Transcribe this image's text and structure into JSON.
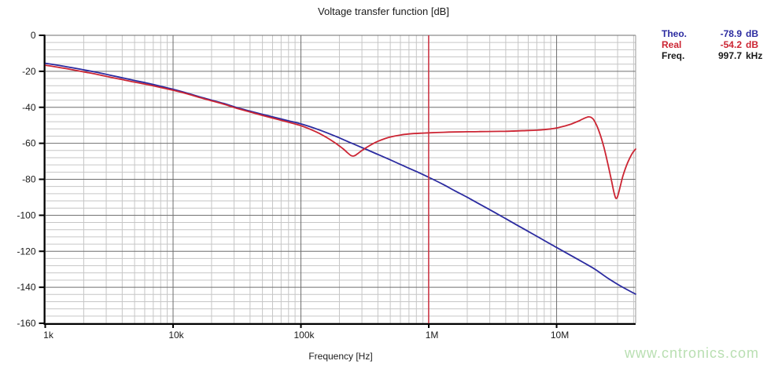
{
  "title": "Voltage transfer function [dB]",
  "watermark": "www.cntronics.com",
  "colors": {
    "theo": "#2b2ba0",
    "real": "#cc2533",
    "cursor": "#cc3040",
    "grid_major": "#6f6f6f",
    "grid_minor": "#c6c6c6",
    "axis": "#000000",
    "watermark": "#b9dfb2",
    "text": "#1a1a1a"
  },
  "legend": {
    "rows": [
      {
        "id": "theo",
        "label": "Theo.",
        "value": "-78.9",
        "unit": "dB"
      },
      {
        "id": "real",
        "label": "Real",
        "value": "-54.2",
        "unit": "dB"
      },
      {
        "id": "freq",
        "label": "Freq.",
        "value": "997.7",
        "unit": "kHz"
      }
    ]
  },
  "chart_data": {
    "type": "line",
    "title": "Voltage transfer function [dB]",
    "xlabel": "Frequency [Hz]",
    "ylabel": "",
    "x_scale": "log",
    "x_range": [
      1000,
      41500000
    ],
    "y_range": [
      -160,
      0
    ],
    "y_major_step": 20,
    "y_minor_step": 4,
    "grid": true,
    "legend_position": "top-right",
    "x_ticks": [
      {
        "f": 1000,
        "label": "1k"
      },
      {
        "f": 10000,
        "label": "10k"
      },
      {
        "f": 100000,
        "label": "100k"
      },
      {
        "f": 1000000,
        "label": "1M"
      },
      {
        "f": 10000000,
        "label": "10M"
      }
    ],
    "y_ticks": [
      {
        "db": 0,
        "label": "0"
      },
      {
        "db": -20,
        "label": "-20"
      },
      {
        "db": -40,
        "label": "-40"
      },
      {
        "db": -60,
        "label": "-60"
      },
      {
        "db": -80,
        "label": "-80"
      },
      {
        "db": -100,
        "label": "-100"
      },
      {
        "db": -120,
        "label": "-120"
      },
      {
        "db": -140,
        "label": "-140"
      },
      {
        "db": -160,
        "label": "-160"
      }
    ],
    "cursor": {
      "freq_hz": 997700,
      "theo_db": -78.9,
      "real_db": -54.2
    },
    "series": [
      {
        "name": "Theo.",
        "color": "#2b2ba0",
        "points": [
          [
            1000,
            -15.5
          ],
          [
            1300,
            -16.8
          ],
          [
            1600,
            -17.9
          ],
          [
            2000,
            -19.2
          ],
          [
            2500,
            -20.5
          ],
          [
            3200,
            -22.1
          ],
          [
            4000,
            -23.6
          ],
          [
            5000,
            -25.1
          ],
          [
            6300,
            -26.6
          ],
          [
            8000,
            -28.3
          ],
          [
            10000,
            -30.0
          ],
          [
            13000,
            -32.2
          ],
          [
            16000,
            -34.1
          ],
          [
            20000,
            -36.0
          ],
          [
            25000,
            -37.9
          ],
          [
            32000,
            -40.3
          ],
          [
            40000,
            -42.1
          ],
          [
            50000,
            -43.9
          ],
          [
            63000,
            -45.7
          ],
          [
            80000,
            -47.5
          ],
          [
            100000,
            -49.2
          ],
          [
            130000,
            -51.8
          ],
          [
            160000,
            -54.2
          ],
          [
            200000,
            -57.0
          ],
          [
            250000,
            -60.0
          ],
          [
            320000,
            -63.2
          ],
          [
            400000,
            -66.2
          ],
          [
            500000,
            -69.2
          ],
          [
            630000,
            -72.4
          ],
          [
            800000,
            -75.7
          ],
          [
            1000000,
            -78.9
          ],
          [
            1300000,
            -82.9
          ],
          [
            1600000,
            -86.4
          ],
          [
            2000000,
            -90.0
          ],
          [
            2500000,
            -93.8
          ],
          [
            3200000,
            -98.0
          ],
          [
            4000000,
            -101.9
          ],
          [
            5000000,
            -105.8
          ],
          [
            6300000,
            -109.8
          ],
          [
            8000000,
            -114.0
          ],
          [
            10000000,
            -117.9
          ],
          [
            13000000,
            -122.4
          ],
          [
            16000000,
            -126.0
          ],
          [
            20000000,
            -130.0
          ],
          [
            25000000,
            -134.8
          ],
          [
            32000000,
            -139.5
          ],
          [
            40000000,
            -143.2
          ],
          [
            41500000,
            -143.8
          ]
        ]
      },
      {
        "name": "Real",
        "color": "#cc2533",
        "points": [
          [
            1000,
            -16.6
          ],
          [
            1300,
            -17.9
          ],
          [
            1600,
            -19.0
          ],
          [
            2000,
            -20.3
          ],
          [
            2500,
            -21.6
          ],
          [
            3200,
            -23.2
          ],
          [
            4000,
            -24.6
          ],
          [
            5000,
            -26.0
          ],
          [
            6300,
            -27.4
          ],
          [
            8000,
            -29.0
          ],
          [
            10000,
            -30.5
          ],
          [
            13000,
            -32.6
          ],
          [
            16000,
            -34.5
          ],
          [
            20000,
            -36.4
          ],
          [
            25000,
            -38.3
          ],
          [
            32000,
            -40.7
          ],
          [
            40000,
            -42.6
          ],
          [
            50000,
            -44.5
          ],
          [
            63000,
            -46.4
          ],
          [
            80000,
            -48.3
          ],
          [
            100000,
            -50.2
          ],
          [
            120000,
            -52.4
          ],
          [
            140000,
            -54.6
          ],
          [
            160000,
            -56.9
          ],
          [
            180000,
            -59.2
          ],
          [
            200000,
            -61.5
          ],
          [
            215000,
            -63.2
          ],
          [
            230000,
            -65.1
          ],
          [
            245000,
            -66.7
          ],
          [
            255000,
            -67.1
          ],
          [
            265000,
            -66.8
          ],
          [
            280000,
            -65.6
          ],
          [
            300000,
            -64.0
          ],
          [
            330000,
            -62.1
          ],
          [
            360000,
            -60.5
          ],
          [
            400000,
            -58.9
          ],
          [
            450000,
            -57.5
          ],
          [
            500000,
            -56.5
          ],
          [
            600000,
            -55.4
          ],
          [
            700000,
            -54.8
          ],
          [
            850000,
            -54.4
          ],
          [
            1000000,
            -54.2
          ],
          [
            1300000,
            -53.9
          ],
          [
            1600000,
            -53.7
          ],
          [
            2000000,
            -53.6
          ],
          [
            2500000,
            -53.5
          ],
          [
            3200000,
            -53.4
          ],
          [
            4000000,
            -53.3
          ],
          [
            5000000,
            -53.1
          ],
          [
            6000000,
            -52.9
          ],
          [
            7000000,
            -52.7
          ],
          [
            8000000,
            -52.4
          ],
          [
            9000000,
            -52.0
          ],
          [
            10000000,
            -51.5
          ],
          [
            11000000,
            -50.8
          ],
          [
            12000000,
            -50.1
          ],
          [
            13000000,
            -49.3
          ],
          [
            14000000,
            -48.4
          ],
          [
            15000000,
            -47.5
          ],
          [
            16000000,
            -46.5
          ],
          [
            17000000,
            -45.7
          ],
          [
            17800000,
            -45.3
          ],
          [
            18600000,
            -45.6
          ],
          [
            19300000,
            -46.5
          ],
          [
            20000000,
            -48.3
          ],
          [
            21000000,
            -51.5
          ],
          [
            22000000,
            -55.5
          ],
          [
            23000000,
            -60.0
          ],
          [
            24000000,
            -65.0
          ],
          [
            25000000,
            -70.5
          ],
          [
            26000000,
            -76.0
          ],
          [
            27000000,
            -81.5
          ],
          [
            28000000,
            -86.8
          ],
          [
            28800000,
            -90.0
          ],
          [
            29300000,
            -90.7
          ],
          [
            29900000,
            -89.8
          ],
          [
            30700000,
            -87.0
          ],
          [
            31700000,
            -83.0
          ],
          [
            33000000,
            -78.2
          ],
          [
            35000000,
            -72.8
          ],
          [
            37000000,
            -68.8
          ],
          [
            39000000,
            -65.7
          ],
          [
            41000000,
            -63.6
          ],
          [
            41500000,
            -63.2
          ]
        ]
      }
    ]
  }
}
